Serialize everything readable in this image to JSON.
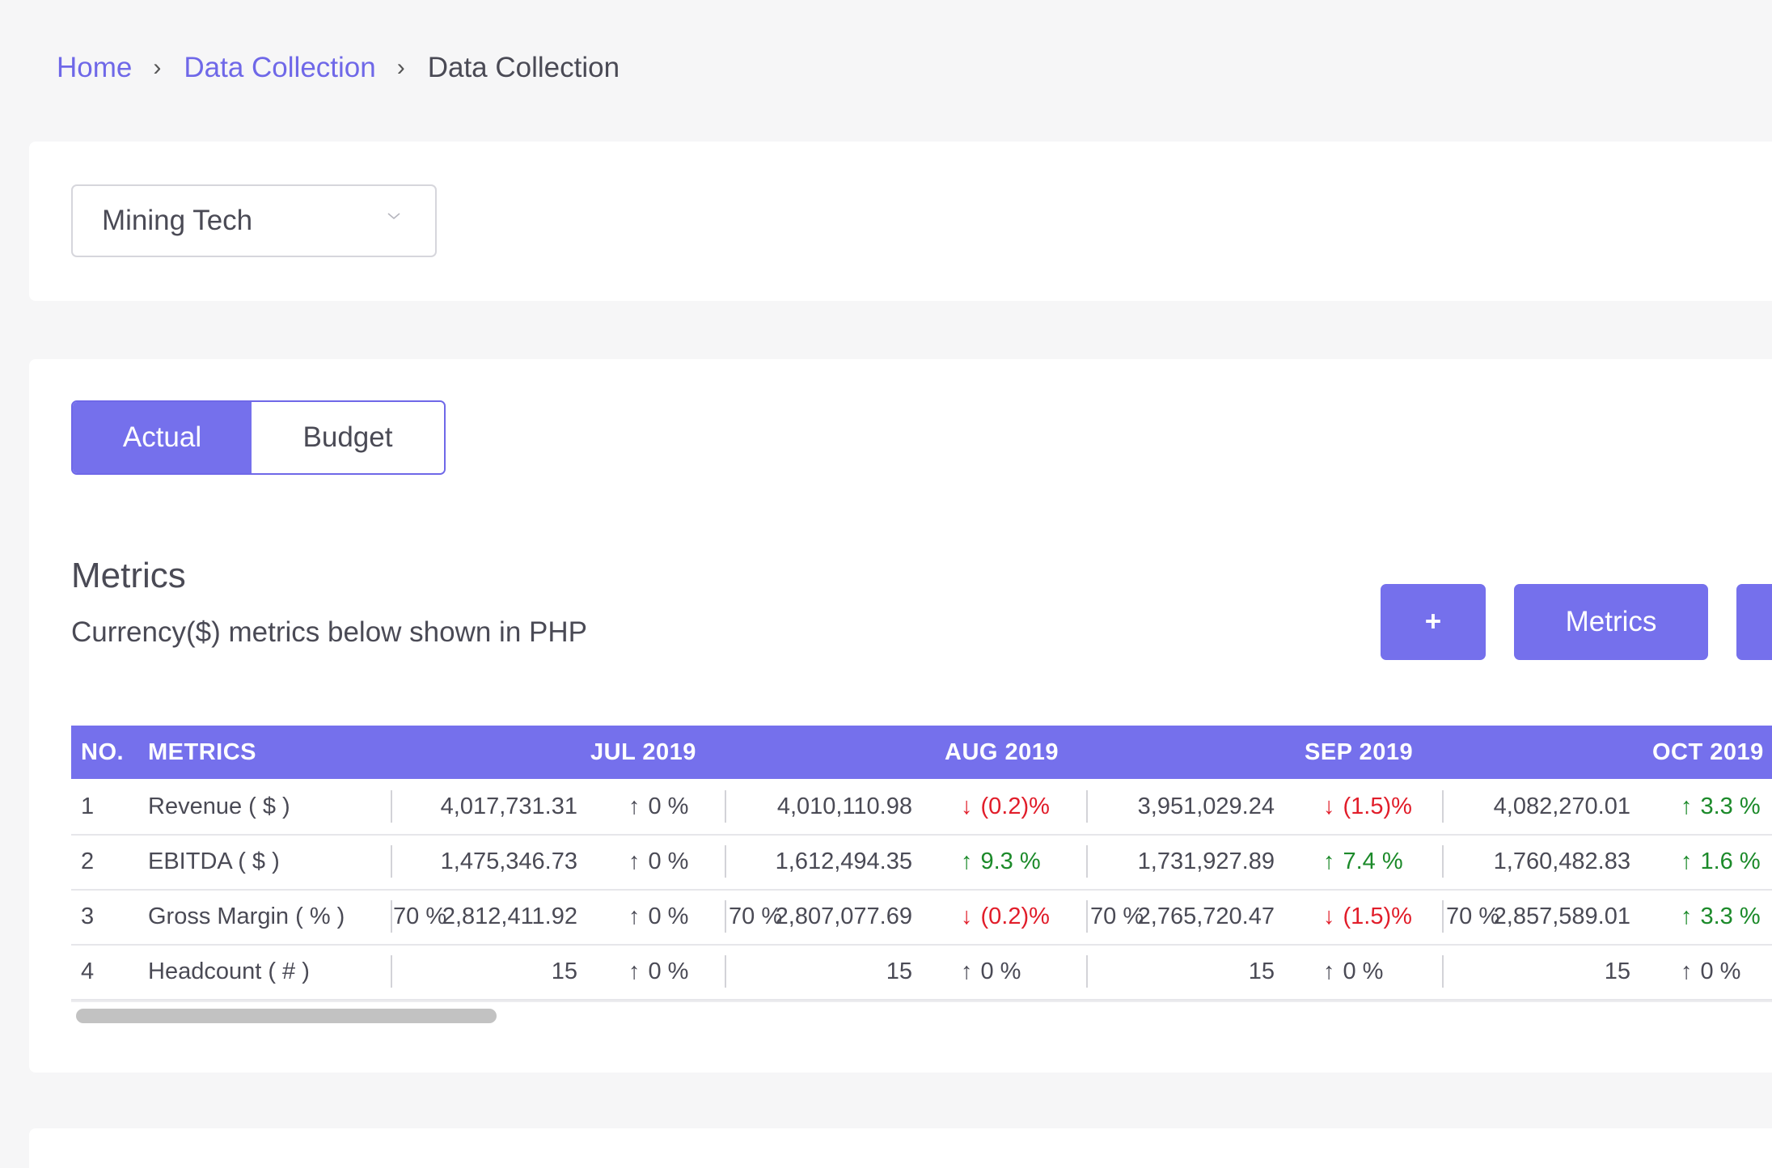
{
  "breadcrumb": {
    "items": [
      {
        "label": "Home"
      },
      {
        "label": "Data Collection"
      },
      {
        "label": "Data Collection"
      }
    ]
  },
  "filter": {
    "company_select": "Mining Tech"
  },
  "toggle": {
    "actual_label": "Actual",
    "budget_label": "Budget",
    "selected": "Actual"
  },
  "metrics_section": {
    "title": "Metrics",
    "subtitle": "Currency($) metrics below shown in PHP",
    "add_button": "+",
    "metrics_button": "Metrics"
  },
  "table": {
    "headers": {
      "no": "NO.",
      "metrics": "METRICS",
      "months": [
        "JUL 2019",
        "AUG 2019",
        "SEP 2019",
        "OCT 2019"
      ]
    },
    "rows": [
      {
        "no": "1",
        "metric": "Revenue ( $ )",
        "cells": [
          {
            "pct": "",
            "value": "4,017,731.31",
            "change": "0 %",
            "trend": "neutral"
          },
          {
            "pct": "",
            "value": "4,010,110.98",
            "change": "(0.2)%",
            "trend": "down"
          },
          {
            "pct": "",
            "value": "3,951,029.24",
            "change": "(1.5)%",
            "trend": "down"
          },
          {
            "pct": "",
            "value": "4,082,270.01",
            "change": "3.3 %",
            "trend": "up"
          }
        ]
      },
      {
        "no": "2",
        "metric": "EBITDA ( $ )",
        "cells": [
          {
            "pct": "",
            "value": "1,475,346.73",
            "change": "0 %",
            "trend": "neutral"
          },
          {
            "pct": "",
            "value": "1,612,494.35",
            "change": "9.3 %",
            "trend": "up"
          },
          {
            "pct": "",
            "value": "1,731,927.89",
            "change": "7.4 %",
            "trend": "up"
          },
          {
            "pct": "",
            "value": "1,760,482.83",
            "change": "1.6 %",
            "trend": "up"
          }
        ]
      },
      {
        "no": "3",
        "metric": "Gross Margin ( % )",
        "cells": [
          {
            "pct": "70 %",
            "value": "2,812,411.92",
            "change": "0 %",
            "trend": "neutral"
          },
          {
            "pct": "70 %",
            "value": "2,807,077.69",
            "change": "(0.2)%",
            "trend": "down"
          },
          {
            "pct": "70 %",
            "value": "2,765,720.47",
            "change": "(1.5)%",
            "trend": "down"
          },
          {
            "pct": "70 %",
            "value": "2,857,589.01",
            "change": "3.3 %",
            "trend": "up"
          }
        ]
      },
      {
        "no": "4",
        "metric": "Headcount ( # )",
        "cells": [
          {
            "pct": "",
            "value": "15",
            "change": "0 %",
            "trend": "neutral"
          },
          {
            "pct": "",
            "value": "15",
            "change": "0 %",
            "trend": "neutral"
          },
          {
            "pct": "",
            "value": "15",
            "change": "0 %",
            "trend": "neutral"
          },
          {
            "pct": "",
            "value": "15",
            "change": "0 %",
            "trend": "neutral"
          }
        ]
      }
    ]
  },
  "colors": {
    "accent": "#7570ec",
    "link": "#6f68e8",
    "up": "#1c8a2a",
    "down": "#e11d2a"
  }
}
